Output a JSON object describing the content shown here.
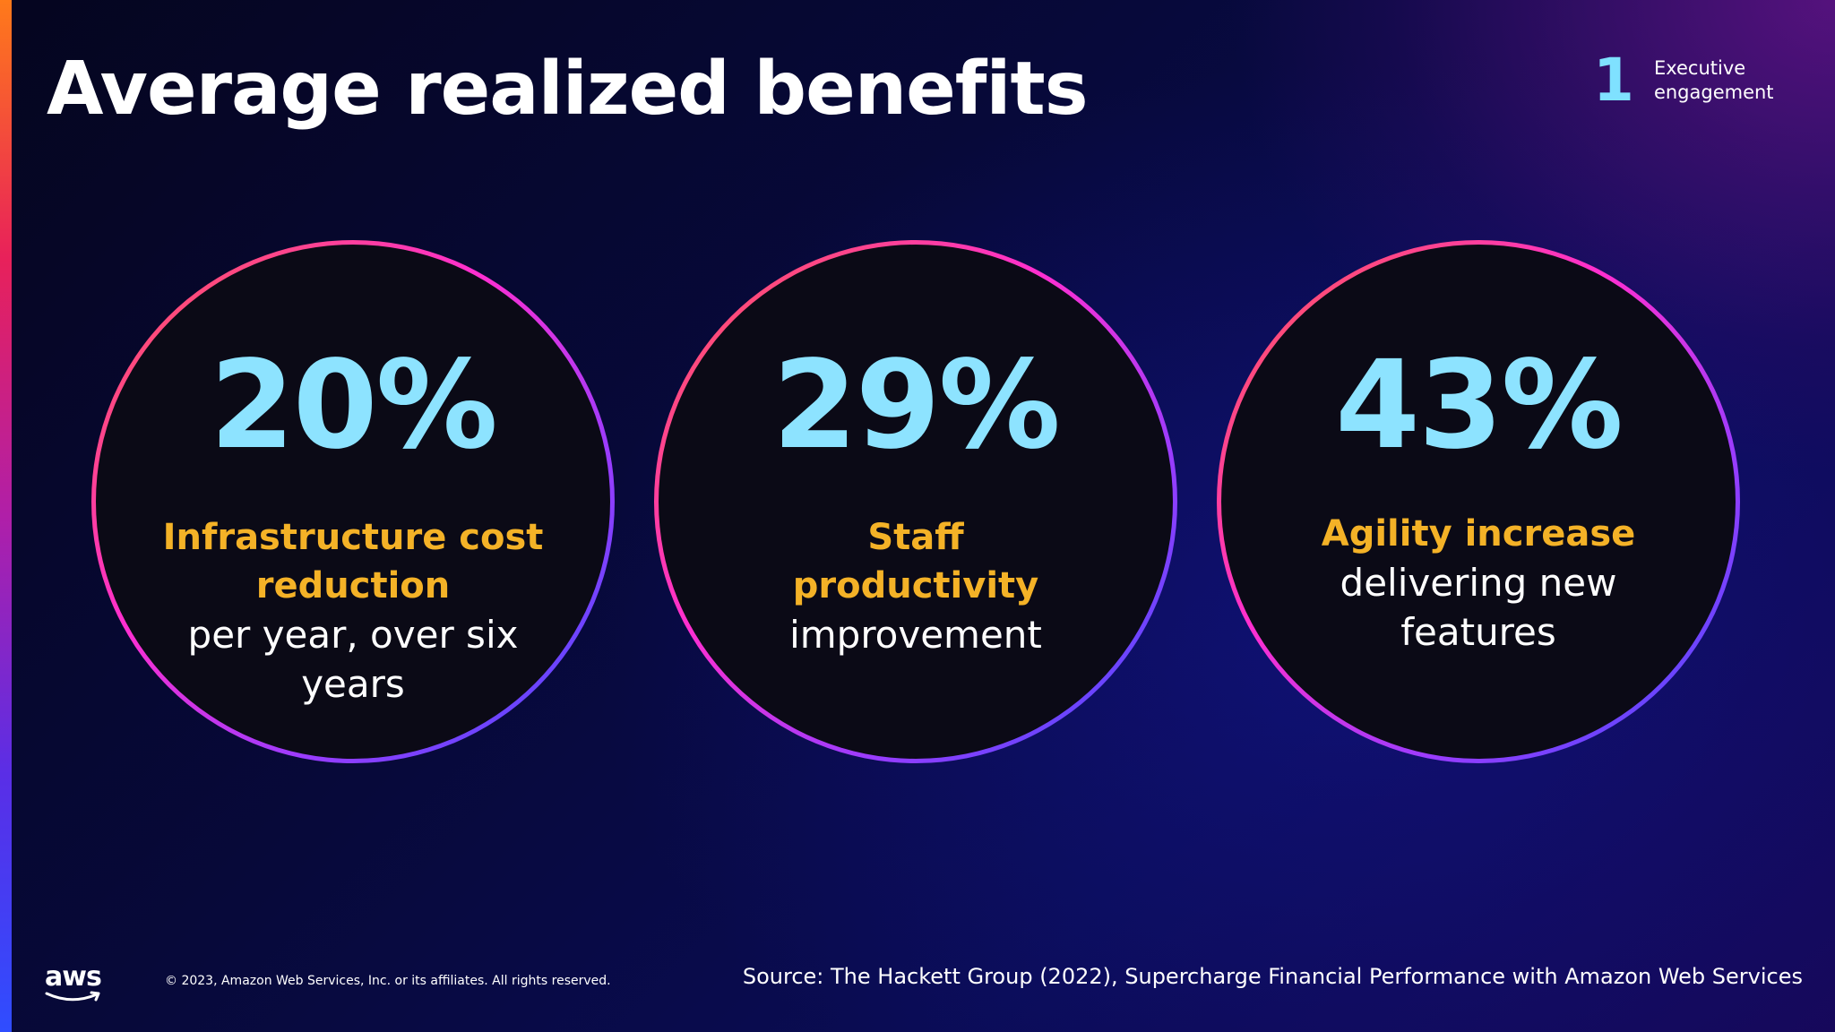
{
  "slide": {
    "title": "Average realized benefits",
    "section": {
      "number": "1",
      "label": "Executive engagement"
    }
  },
  "benefits": [
    {
      "percent": "20%",
      "highlight": "Infrastructure cost reduction",
      "detail": "per year, over six years"
    },
    {
      "percent": "29%",
      "highlight": "Staff productivity",
      "detail": "improvement"
    },
    {
      "percent": "43%",
      "highlight": "Agility increase",
      "detail": "delivering new features"
    }
  ],
  "footer": {
    "logo_text": "aws",
    "copyright": "© 2023, Amazon Web Services, Inc. or its affiliates. All rights reserved.",
    "source": "Source: The Hackett Group (2022), Supercharge Financial Performance with Amazon Web Services"
  },
  "colors": {
    "percent": "#8de3ff",
    "highlight": "#f4b227",
    "section_number": "#7fe1ff"
  }
}
